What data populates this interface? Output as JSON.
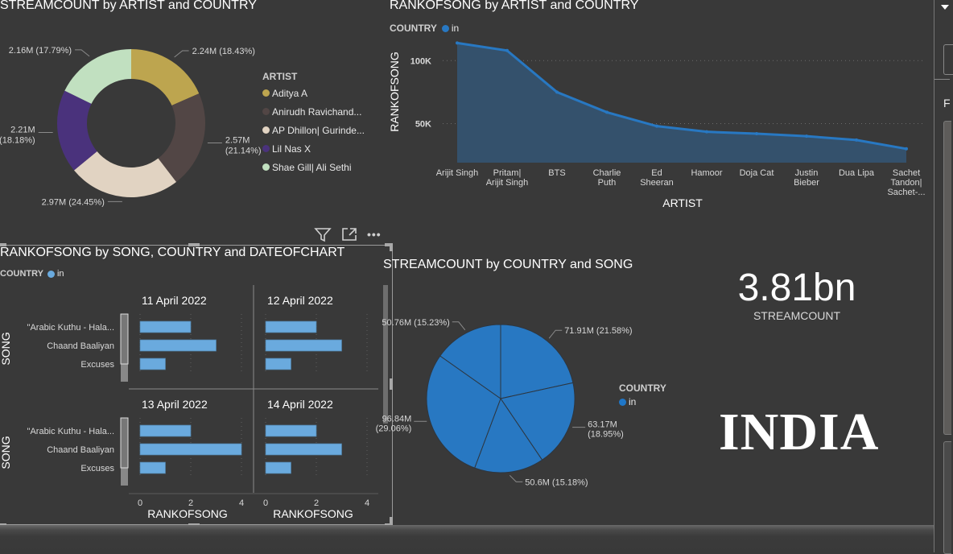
{
  "colors": {
    "background": "#393939",
    "accent_blue": "#2878c2",
    "area_fill": "#34516c",
    "bar_fill": "#6aaade",
    "legend_blue": "#1f77c8"
  },
  "visual_header": {
    "icons": [
      "filter-icon",
      "focus-mode-icon",
      "more-options-icon"
    ]
  },
  "chart_data": [
    {
      "id": "donut",
      "type": "pie",
      "variant": "donut",
      "title": "STREAMCOUNT by ARTIST and COUNTRY",
      "legend_title": "ARTIST",
      "legend_position": "right",
      "slices": [
        {
          "label": "Aditya A",
          "value": 2.24,
          "display": "2.24M (18.43%)",
          "percent": 18.43,
          "color": "#bda54f"
        },
        {
          "label": "Anirudh Ravichand...",
          "value": 2.57,
          "display_line1": "2.57M",
          "display_line2": "(21.14%)",
          "percent": 21.14,
          "color": "#524645"
        },
        {
          "label": "AP Dhillon| Gurinde...",
          "value": 2.97,
          "display": "2.97M (24.45%)",
          "percent": 24.45,
          "color": "#e1d3c2"
        },
        {
          "label": "Lil Nas X",
          "value": 2.21,
          "display_line1": "2.21M",
          "display_line2": "(18.18%)",
          "percent": 18.18,
          "color": "#4a327c"
        },
        {
          "label": "Shae Gill| Ali Sethi",
          "value": 2.16,
          "display": "2.16M (17.79%)",
          "percent": 17.79,
          "color": "#c1e0c0"
        }
      ]
    },
    {
      "id": "area",
      "type": "area",
      "title": "RANKOFSONG by ARTIST and COUNTRY",
      "legend_title": "COUNTRY",
      "legend_position": "top-left",
      "series": [
        {
          "name": "in",
          "values": [
            114000,
            108000,
            75000,
            59000,
            48000,
            43500,
            42000,
            40000,
            37000,
            30000
          ]
        }
      ],
      "categories": [
        [
          "Arijit Singh"
        ],
        [
          "Pritam|",
          "Arijit Singh"
        ],
        [
          "BTS"
        ],
        [
          "Charlie",
          "Puth"
        ],
        [
          "Ed",
          "Sheeran"
        ],
        [
          "Hamoor"
        ],
        [
          "Doja Cat"
        ],
        [
          "Justin",
          "Bieber"
        ],
        [
          "Dua Lipa"
        ],
        [
          "Sachet",
          "Tandon|",
          "Sachet-..."
        ]
      ],
      "xlabel": "ARTIST",
      "ylabel": "RANKOFSONG",
      "yticks": [
        {
          "value": 50000,
          "label": "50K"
        },
        {
          "value": 100000,
          "label": "100K"
        }
      ],
      "ylim": [
        19000,
        120000
      ],
      "grid": true
    },
    {
      "id": "bars",
      "type": "bar",
      "orientation": "horizontal",
      "title": "RANKOFSONG by SONG, COUNTRY and DATEOFCHART",
      "legend_title": "COUNTRY",
      "legend_series": "in",
      "ylabel": "SONG",
      "xlabel": "RANKOFSONG",
      "categories": [
        "\"Arabic Kuthu - Hala...",
        "Chaand Baaliyan",
        "Excuses"
      ],
      "xticks": [
        "0",
        "2",
        "4"
      ],
      "xlim": [
        0,
        4
      ],
      "panels": [
        {
          "date": "11 April 2022",
          "values": [
            2,
            3,
            1
          ]
        },
        {
          "date": "12 April 2022",
          "values": [
            2,
            3,
            1
          ]
        },
        {
          "date": "13 April 2022",
          "values": [
            2,
            4,
            1
          ]
        },
        {
          "date": "14 April 2022",
          "values": [
            2,
            3,
            1
          ]
        }
      ]
    },
    {
      "id": "pie",
      "type": "pie",
      "title": "STREAMCOUNT by COUNTRY and SONG",
      "legend_title": "COUNTRY",
      "legend_series": "in",
      "legend_position": "right",
      "slices": [
        {
          "value": 71.91,
          "percent": 21.58,
          "display": "71.91M (21.58%)"
        },
        {
          "value": 63.17,
          "percent": 18.95,
          "display_line1": "63.17M",
          "display_line2": "(18.95%)"
        },
        {
          "value": 50.6,
          "percent": 15.18,
          "display": "50.6M (15.18%)"
        },
        {
          "value": 96.84,
          "percent": 29.06,
          "display_line1": "96.84M",
          "display_line2": "(29.06%)"
        },
        {
          "value": 50.76,
          "percent": 15.23,
          "display": "50.76M (15.23%)"
        }
      ]
    }
  ],
  "kpi": {
    "value": "3.81bn",
    "label": "STREAMCOUNT"
  },
  "banner": {
    "text": "INDIA"
  },
  "right_panel": {
    "partial_label": "F"
  }
}
